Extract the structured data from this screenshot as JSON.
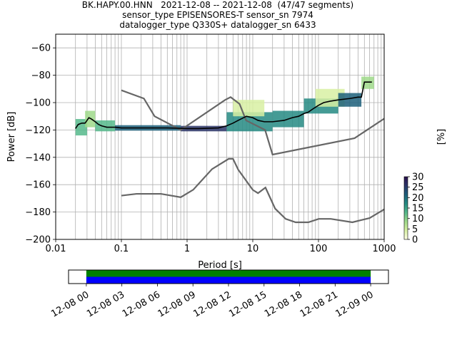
{
  "header": {
    "line1": "BK.HAPY.00.HNN   2021-12-08 -- 2021-12-08  (47/47 segments)",
    "line2": "sensor_type EPISENSORES-T sensor_sn 7974",
    "line3": "datalogger_type Q330S+ datalogger_sn 6433"
  },
  "chart_data": [
    {
      "type": "heatmap",
      "title": "BK.HAPY.00.HNN   2021-12-08 -- 2021-12-08  (47/47 segments)",
      "xlabel": "Period [s]",
      "ylabel": "Power [dB]",
      "xscale": "log",
      "xlim": [
        0.01,
        1000
      ],
      "ylim": [
        -200,
        -50
      ],
      "x_ticks": [
        0.01,
        0.1,
        1,
        10,
        100,
        1000
      ],
      "x_tick_labels": [
        "0.01",
        "0.1",
        "1",
        "10",
        "100",
        "1000"
      ],
      "y_ticks": [
        -200,
        -180,
        -160,
        -140,
        -120,
        -100,
        -80,
        -60
      ],
      "grid": true,
      "colorbar": {
        "label": "[%]",
        "min": 0,
        "max": 30,
        "ticks": [
          0,
          5,
          10,
          15,
          20,
          25,
          30
        ],
        "colors": [
          "#ffffe5",
          "#d8f0a3",
          "#9fd98a",
          "#55b88b",
          "#248a82",
          "#1c5f7a",
          "#2b3569",
          "#2b124e"
        ]
      },
      "mode_line": {
        "name": "mode",
        "color": "#000000",
        "x": [
          0.02,
          0.022,
          0.025,
          0.028,
          0.03,
          0.032,
          0.035,
          0.04,
          0.045,
          0.05,
          0.06,
          0.08,
          0.1,
          0.2,
          0.3,
          0.5,
          0.8,
          1,
          1.5,
          2,
          3,
          4,
          5,
          6,
          8,
          10,
          12,
          15,
          20,
          30,
          40,
          50,
          60,
          70,
          80,
          100,
          120,
          150,
          200,
          300,
          400,
          450,
          500,
          550,
          650
        ],
        "y": [
          -119,
          -116,
          -115,
          -115,
          -113,
          -111,
          -112,
          -114,
          -116,
          -117,
          -118,
          -118,
          -118.5,
          -118.5,
          -118.5,
          -118.5,
          -118.8,
          -119,
          -119,
          -118.8,
          -118.5,
          -117,
          -115,
          -113,
          -110,
          -111,
          -113,
          -114,
          -114,
          -113,
          -111,
          -110,
          -108,
          -107,
          -105,
          -102,
          -100,
          -99,
          -98,
          -97,
          -96,
          -96,
          -85,
          -85,
          -85
        ]
      },
      "noise_models": [
        {
          "name": "high noise model",
          "color": "#666666",
          "x": [
            0.1,
            0.22,
            0.32,
            0.8,
            3.8,
            4.6,
            6.3,
            7.9,
            15.4,
            20,
            354.8,
            10000
          ],
          "y": [
            -91,
            -97,
            -110,
            -120,
            -98,
            -96,
            -101,
            -113,
            -120,
            -138,
            -126,
            -80
          ]
        },
        {
          "name": "low noise model",
          "color": "#666666",
          "x": [
            0.1,
            0.17,
            0.4,
            0.8,
            1.24,
            2.4,
            4.3,
            5,
            6,
            10,
            12,
            15.6,
            21.9,
            31.6,
            45,
            70,
            101,
            154,
            328,
            600,
            1000
          ],
          "y": [
            -168,
            -166.7,
            -166.7,
            -169.2,
            -163.7,
            -148.6,
            -141.1,
            -141.1,
            -149,
            -163.8,
            -166.2,
            -162.1,
            -177.5,
            -185,
            -187.5,
            -187.5,
            -185,
            -185,
            -187.5,
            -184.4,
            -178
          ]
        }
      ],
      "density": [
        {
          "x": [
            0.02,
            0.03
          ],
          "y": [
            -124,
            -112
          ],
          "level": 12
        },
        {
          "x": [
            0.028,
            0.04
          ],
          "y": [
            -118,
            -106
          ],
          "level": 8
        },
        {
          "x": [
            0.04,
            0.08
          ],
          "y": [
            -121,
            -113
          ],
          "level": 14
        },
        {
          "x": [
            0.08,
            0.8
          ],
          "y": [
            -120.5,
            -116.5
          ],
          "level": 22
        },
        {
          "x": [
            0.8,
            4
          ],
          "y": [
            -121,
            -117
          ],
          "level": 24
        },
        {
          "x": [
            4,
            20
          ],
          "y": [
            -121,
            -107
          ],
          "level": 15
        },
        {
          "x": [
            5,
            15
          ],
          "y": [
            -110,
            -98
          ],
          "level": 3
        },
        {
          "x": [
            20,
            60
          ],
          "y": [
            -118,
            -106
          ],
          "level": 18
        },
        {
          "x": [
            60,
            200
          ],
          "y": [
            -108,
            -97
          ],
          "level": 16
        },
        {
          "x": [
            90,
            250
          ],
          "y": [
            -103,
            -90
          ],
          "level": 4
        },
        {
          "x": [
            200,
            450
          ],
          "y": [
            -103,
            -93
          ],
          "level": 20
        },
        {
          "x": [
            450,
            700
          ],
          "y": [
            -90,
            -81
          ],
          "level": 10
        }
      ]
    },
    {
      "type": "timeline",
      "tick_labels": [
        "12-08 00",
        "12-08 03",
        "12-08 06",
        "12-08 09",
        "12-08 12",
        "12-08 15",
        "12-08 18",
        "12-08 21",
        "12-09 00"
      ],
      "range_hours": [
        -1.5,
        25.5
      ],
      "bars": [
        {
          "start_hour": 0,
          "end_hour": 24,
          "color": "#008000"
        },
        {
          "start_hour": 0,
          "end_hour": 24,
          "color": "#0000ff"
        }
      ]
    }
  ]
}
